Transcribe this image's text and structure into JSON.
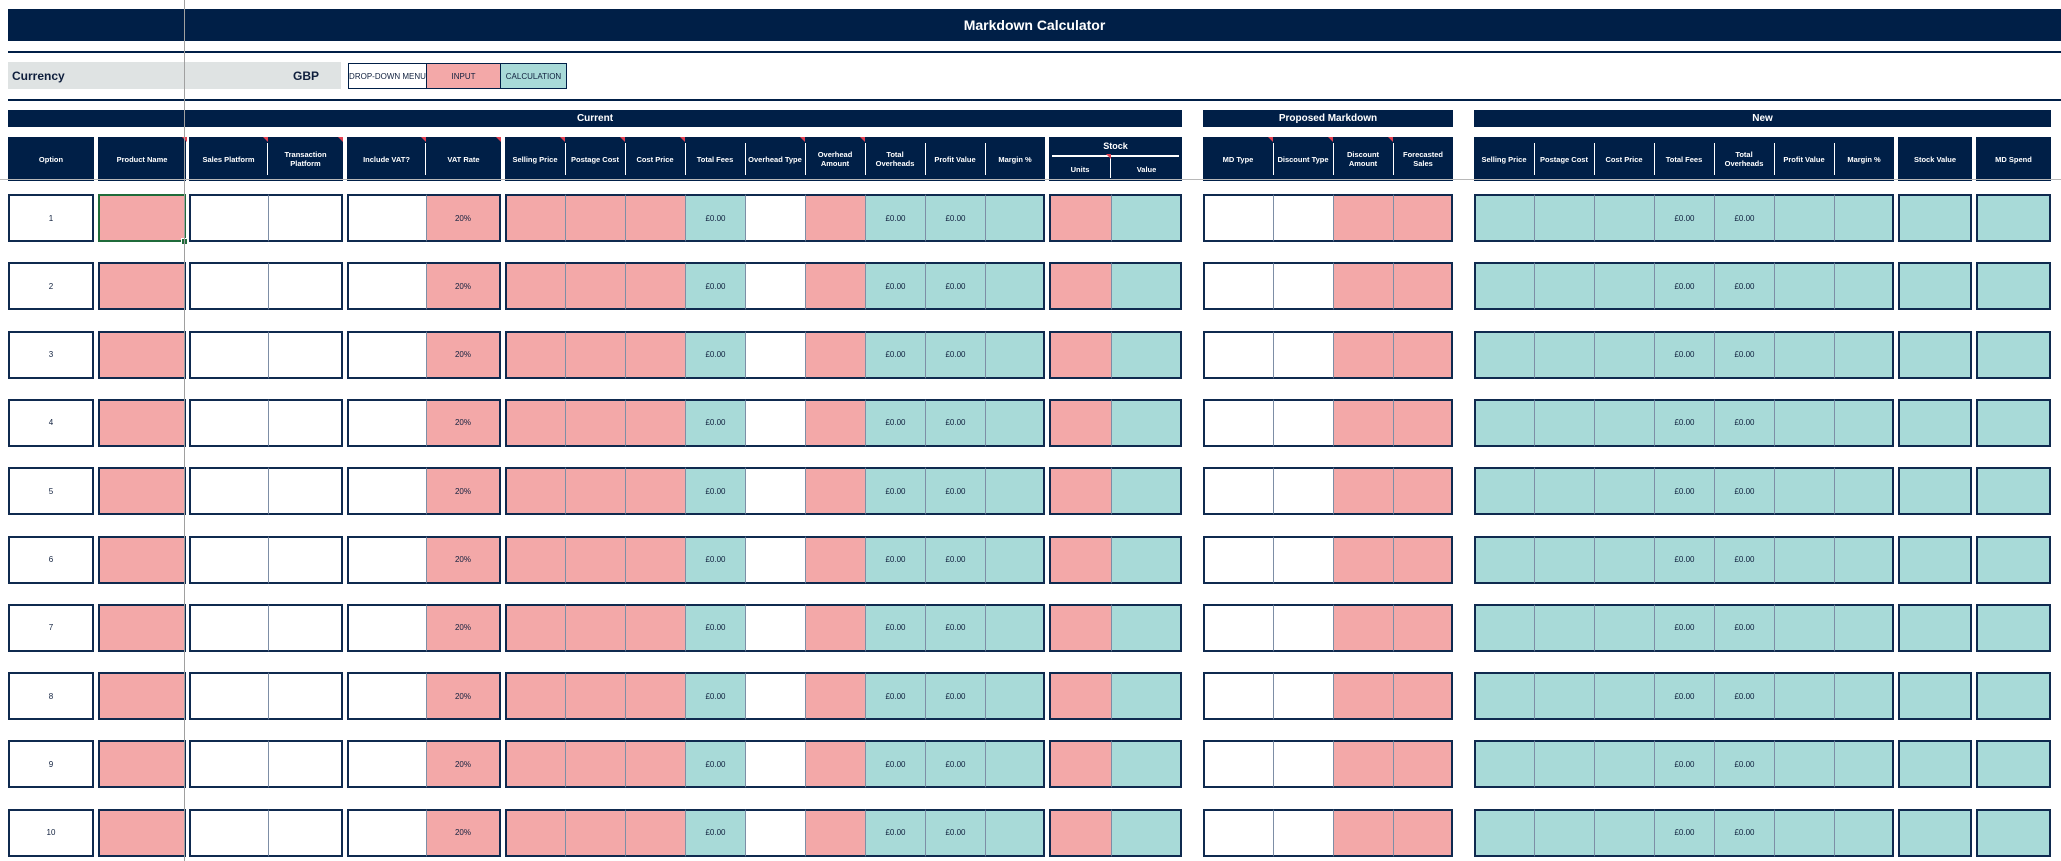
{
  "title": "Markdown Calculator",
  "currency": {
    "label": "Currency",
    "value": "GBP"
  },
  "legend": {
    "dropdown": "DROP-DOWN MENU",
    "input": "INPUT",
    "calculation": "CALCULATION"
  },
  "groups": {
    "current": "Current",
    "proposed": "Proposed Markdown",
    "new": "New"
  },
  "headers": {
    "option": "Option",
    "product_name": "Product Name",
    "sales_platform": "Sales Platform",
    "transaction_platform": "Transaction Platform",
    "include_vat": "Include VAT?",
    "vat_rate": "VAT Rate",
    "selling_price": "Selling Price",
    "postage_cost": "Postage Cost",
    "cost_price": "Cost Price",
    "total_fees": "Total Fees",
    "overhead_type": "Overhead Type",
    "overhead_amount": "Overhead Amount",
    "total_overheads": "Total Overheads",
    "profit_value": "Profit Value",
    "margin_pct": "Margin %",
    "stock": "Stock",
    "units": "Units",
    "value": "Value",
    "md_type": "MD Type",
    "discount_type": "Discount Type",
    "discount_amount": "Discount Amount",
    "forecasted_sales": "Forecasted Sales",
    "new_selling_price": "Selling Price",
    "new_postage_cost": "Postage Cost",
    "new_cost_price": "Cost Price",
    "new_total_fees": "Total Fees",
    "new_total_overheads": "Total Overheads",
    "new_profit_value": "Profit Value",
    "new_margin_pct": "Margin %",
    "stock_value": "Stock Value",
    "md_spend": "MD Spend"
  },
  "rows": [
    {
      "option": "1",
      "vat": "20%",
      "total_fees": "£0.00",
      "total_overheads": "£0.00",
      "profit": "£0.00",
      "new_total_fees": "£0.00",
      "new_total_overheads": "£0.00"
    },
    {
      "option": "2",
      "vat": "20%",
      "total_fees": "£0.00",
      "total_overheads": "£0.00",
      "profit": "£0.00",
      "new_total_fees": "£0.00",
      "new_total_overheads": "£0.00"
    },
    {
      "option": "3",
      "vat": "20%",
      "total_fees": "£0.00",
      "total_overheads": "£0.00",
      "profit": "£0.00",
      "new_total_fees": "£0.00",
      "new_total_overheads": "£0.00"
    },
    {
      "option": "4",
      "vat": "20%",
      "total_fees": "£0.00",
      "total_overheads": "£0.00",
      "profit": "£0.00",
      "new_total_fees": "£0.00",
      "new_total_overheads": "£0.00"
    },
    {
      "option": "5",
      "vat": "20%",
      "total_fees": "£0.00",
      "total_overheads": "£0.00",
      "profit": "£0.00",
      "new_total_fees": "£0.00",
      "new_total_overheads": "£0.00"
    },
    {
      "option": "6",
      "vat": "20%",
      "total_fees": "£0.00",
      "total_overheads": "£0.00",
      "profit": "£0.00",
      "new_total_fees": "£0.00",
      "new_total_overheads": "£0.00"
    },
    {
      "option": "7",
      "vat": "20%",
      "total_fees": "£0.00",
      "total_overheads": "£0.00",
      "profit": "£0.00",
      "new_total_fees": "£0.00",
      "new_total_overheads": "£0.00"
    },
    {
      "option": "8",
      "vat": "20%",
      "total_fees": "£0.00",
      "total_overheads": "£0.00",
      "profit": "£0.00",
      "new_total_fees": "£0.00",
      "new_total_overheads": "£0.00"
    },
    {
      "option": "9",
      "vat": "20%",
      "total_fees": "£0.00",
      "total_overheads": "£0.00",
      "profit": "£0.00",
      "new_total_fees": "£0.00",
      "new_total_overheads": "£0.00"
    },
    {
      "option": "10",
      "vat": "20%",
      "total_fees": "£0.00",
      "total_overheads": "£0.00",
      "profit": "£0.00",
      "new_total_fees": "£0.00",
      "new_total_overheads": "£0.00"
    }
  ],
  "colors": {
    "navy": "#001f47",
    "input": "#f3a8a8",
    "calculation": "#a8dad8",
    "selection": "#1f6b3a"
  }
}
